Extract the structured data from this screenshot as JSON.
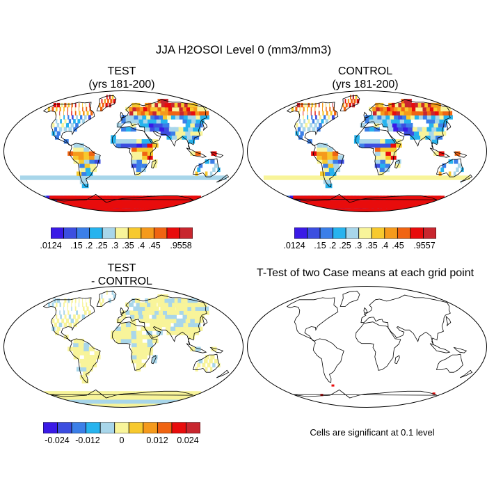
{
  "title": "JJA H2OSOI Level 0 (mm3/mm3)",
  "panels": {
    "test": {
      "title_line1": "TEST",
      "title_line2": "(yrs 181-200)"
    },
    "control": {
      "title_line1": "CONTROL",
      "title_line2": "(yrs 181-200)"
    },
    "diff": {
      "title_line1": "TEST",
      "title_line2": "- CONTROL"
    },
    "ttest": {
      "title": "T-Test of two Case means at each grid point",
      "note": "Cells are significant at 0.1 level"
    }
  },
  "colorbars": {
    "test": {
      "colors": [
        "#3a1ae6",
        "#3c4ee0",
        "#3b7fe8",
        "#27b3ee",
        "#a8d6ea",
        "#f8f49a",
        "#f7c92e",
        "#f59a1c",
        "#f06412",
        "#e80c0c",
        "#c8262e"
      ],
      "labels": [
        ".0124",
        ".15",
        ".2",
        ".25",
        ".3",
        ".35",
        ".4",
        ".45",
        ".9558"
      ]
    },
    "control": {
      "colors": [
        "#3a1ae6",
        "#3c4ee0",
        "#3b7fe8",
        "#27b3ee",
        "#a8d6ea",
        "#f8f49a",
        "#f7c92e",
        "#f59a1c",
        "#f06412",
        "#e80c0c",
        "#c8262e"
      ],
      "labels": [
        ".0124",
        ".15",
        ".2",
        ".25",
        ".3",
        ".35",
        ".4",
        ".45",
        ".9557"
      ]
    },
    "diff": {
      "colors": [
        "#3a1ae6",
        "#3c4ee0",
        "#3b7fe8",
        "#27b3ee",
        "#a8d6ea",
        "#f8f49a",
        "#f7c92e",
        "#f59a1c",
        "#f06412",
        "#e80c0c",
        "#c8262e"
      ],
      "labels": [
        "-0.024",
        "-0.012",
        "0",
        "0.012",
        "0.024"
      ]
    }
  }
}
